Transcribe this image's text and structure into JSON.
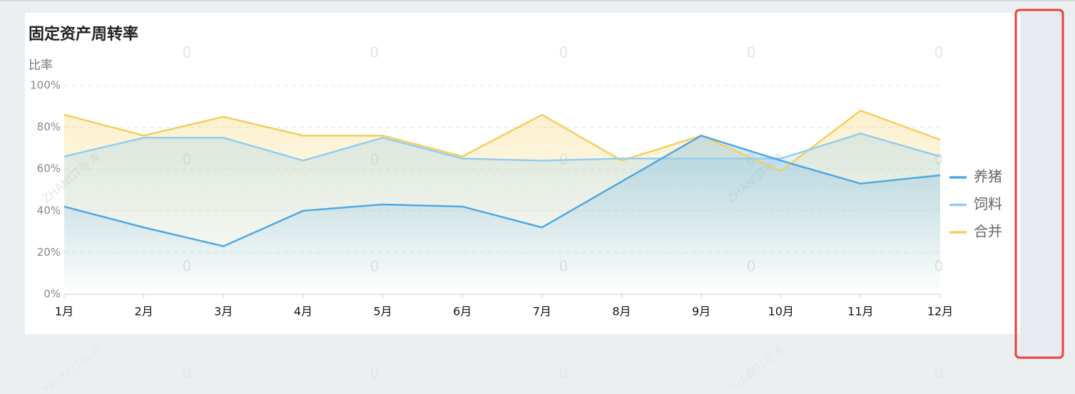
{
  "chart_data": {
    "type": "line",
    "title": "固定资产周转率",
    "y_label": "比率",
    "categories": [
      "1月",
      "2月",
      "3月",
      "4月",
      "5月",
      "6月",
      "7月",
      "8月",
      "9月",
      "10月",
      "11月",
      "12月"
    ],
    "series": [
      {
        "name": "养猪",
        "color": "#4fa8e3",
        "values": [
          42,
          32,
          23,
          40,
          43,
          42,
          32,
          54,
          76,
          64,
          53,
          57
        ]
      },
      {
        "name": "饲料",
        "color": "#92cdef",
        "values": [
          66,
          75,
          75,
          64,
          75,
          65,
          64,
          65,
          65,
          65,
          77,
          66
        ]
      },
      {
        "name": "合并",
        "color": "#f3cf5e",
        "values": [
          86,
          76,
          85,
          76,
          76,
          66,
          86,
          64,
          76,
          59,
          88,
          74
        ]
      }
    ],
    "ylim": [
      0,
      100
    ],
    "yticks": [
      {
        "value": 0,
        "label": "0%"
      },
      {
        "value": 20,
        "label": "20%"
      },
      {
        "value": 40,
        "label": "40%"
      },
      {
        "value": 60,
        "label": "60%"
      },
      {
        "value": 80,
        "label": "80%"
      },
      {
        "value": 100,
        "label": "100%"
      }
    ],
    "grid": true,
    "area": true,
    "legend": "right"
  },
  "watermark": {
    "text": "ZHANGT张涛",
    "digit": "0"
  }
}
